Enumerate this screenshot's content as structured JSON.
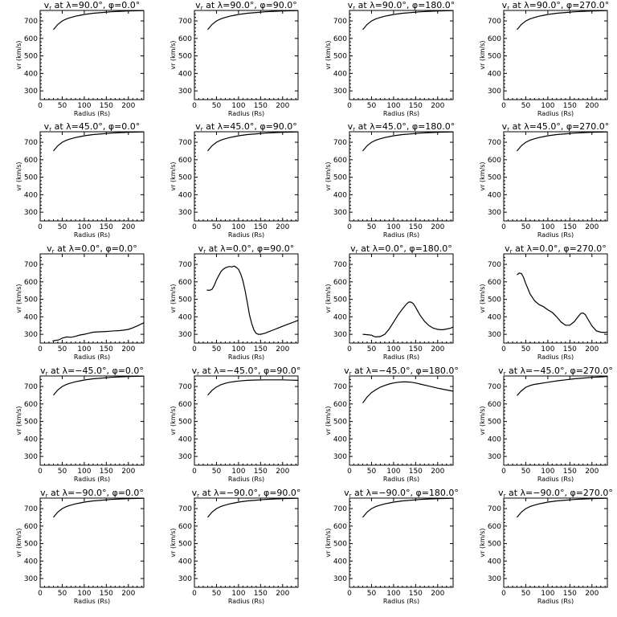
{
  "chart_data": [
    {
      "type": "line",
      "title": "v_r at λ=90.0°, φ=0.0°",
      "title_parts": {
        "lat": "90.0",
        "lon": "0.0"
      },
      "xlabel": "Radius (Rs)",
      "ylabel": "v_r (km/s)",
      "xlim": [
        0,
        235
      ],
      "ylim": [
        250,
        760
      ],
      "xticks": [
        0,
        50,
        100,
        150,
        200
      ],
      "yticks": [
        300,
        400,
        500,
        600,
        700
      ],
      "x": [
        30,
        40,
        50,
        60,
        70,
        80,
        90,
        100,
        120,
        140,
        160,
        180,
        200,
        220,
        235
      ],
      "y": [
        650,
        680,
        700,
        712,
        720,
        727,
        732,
        737,
        744,
        748,
        752,
        755,
        757,
        758,
        759
      ]
    },
    {
      "type": "line",
      "title": "v_r at λ=90.0°, φ=90.0°",
      "title_parts": {
        "lat": "90.0",
        "lon": "90.0"
      },
      "xlabel": "Radius (Rs)",
      "ylabel": "v_r (km/s)",
      "xlim": [
        0,
        235
      ],
      "ylim": [
        250,
        760
      ],
      "xticks": [
        0,
        50,
        100,
        150,
        200
      ],
      "yticks": [
        300,
        400,
        500,
        600,
        700
      ],
      "x": [
        30,
        40,
        50,
        60,
        70,
        80,
        90,
        100,
        120,
        140,
        160,
        180,
        200,
        220,
        235
      ],
      "y": [
        650,
        680,
        700,
        712,
        720,
        727,
        732,
        737,
        744,
        748,
        752,
        755,
        757,
        758,
        759
      ]
    },
    {
      "type": "line",
      "title": "v_r at λ=90.0°, φ=180.0°",
      "title_parts": {
        "lat": "90.0",
        "lon": "180.0"
      },
      "xlabel": "Radius (Rs)",
      "ylabel": "v_r (km/s)",
      "xlim": [
        0,
        235
      ],
      "ylim": [
        250,
        760
      ],
      "xticks": [
        0,
        50,
        100,
        150,
        200
      ],
      "yticks": [
        300,
        400,
        500,
        600,
        700
      ],
      "x": [
        30,
        40,
        50,
        60,
        70,
        80,
        90,
        100,
        120,
        140,
        160,
        180,
        200,
        220,
        235
      ],
      "y": [
        650,
        680,
        700,
        712,
        720,
        727,
        732,
        737,
        744,
        748,
        752,
        755,
        757,
        758,
        759
      ]
    },
    {
      "type": "line",
      "title": "v_r at λ=90.0°, φ=270.0°",
      "title_parts": {
        "lat": "90.0",
        "lon": "270.0"
      },
      "xlabel": "Radius (Rs)",
      "ylabel": "v_r (km/s)",
      "xlim": [
        0,
        235
      ],
      "ylim": [
        250,
        760
      ],
      "xticks": [
        0,
        50,
        100,
        150,
        200
      ],
      "yticks": [
        300,
        400,
        500,
        600,
        700
      ],
      "x": [
        30,
        40,
        50,
        60,
        70,
        80,
        90,
        100,
        120,
        140,
        160,
        180,
        200,
        220,
        235
      ],
      "y": [
        650,
        680,
        700,
        712,
        720,
        727,
        732,
        737,
        744,
        748,
        752,
        755,
        757,
        758,
        759
      ]
    },
    {
      "type": "line",
      "title": "v_r at λ=45.0°, φ=0.0°",
      "title_parts": {
        "lat": "45.0",
        "lon": "0.0"
      },
      "xlabel": "Radius (Rs)",
      "ylabel": "v_r (km/s)",
      "xlim": [
        0,
        235
      ],
      "ylim": [
        250,
        760
      ],
      "xticks": [
        0,
        50,
        100,
        150,
        200
      ],
      "yticks": [
        300,
        400,
        500,
        600,
        700
      ],
      "x": [
        30,
        40,
        50,
        60,
        70,
        80,
        90,
        100,
        120,
        140,
        160,
        180,
        200,
        220,
        235
      ],
      "y": [
        650,
        680,
        700,
        712,
        720,
        727,
        732,
        737,
        744,
        748,
        752,
        755,
        757,
        758,
        759
      ]
    },
    {
      "type": "line",
      "title": "v_r at λ=45.0°, φ=90.0°",
      "title_parts": {
        "lat": "45.0",
        "lon": "90.0"
      },
      "xlabel": "Radius (Rs)",
      "ylabel": "v_r (km/s)",
      "xlim": [
        0,
        235
      ],
      "ylim": [
        250,
        760
      ],
      "xticks": [
        0,
        50,
        100,
        150,
        200
      ],
      "yticks": [
        300,
        400,
        500,
        600,
        700
      ],
      "x": [
        30,
        40,
        50,
        60,
        70,
        80,
        90,
        100,
        120,
        140,
        160,
        180,
        200,
        220,
        235
      ],
      "y": [
        650,
        680,
        700,
        712,
        720,
        727,
        732,
        737,
        744,
        748,
        752,
        755,
        757,
        758,
        759
      ]
    },
    {
      "type": "line",
      "title": "v_r at λ=45.0°, φ=180.0°",
      "title_parts": {
        "lat": "45.0",
        "lon": "180.0"
      },
      "xlabel": "Radius (Rs)",
      "ylabel": "v_r (km/s)",
      "xlim": [
        0,
        235
      ],
      "ylim": [
        250,
        760
      ],
      "xticks": [
        0,
        50,
        100,
        150,
        200
      ],
      "yticks": [
        300,
        400,
        500,
        600,
        700
      ],
      "x": [
        30,
        40,
        50,
        60,
        70,
        80,
        90,
        100,
        120,
        140,
        160,
        180,
        200,
        220,
        235
      ],
      "y": [
        650,
        680,
        700,
        712,
        720,
        727,
        732,
        737,
        744,
        748,
        752,
        755,
        757,
        758,
        759
      ]
    },
    {
      "type": "line",
      "title": "v_r at λ=45.0°, φ=270.0°",
      "title_parts": {
        "lat": "45.0",
        "lon": "270.0"
      },
      "xlabel": "Radius (Rs)",
      "ylabel": "v_r (km/s)",
      "xlim": [
        0,
        235
      ],
      "ylim": [
        250,
        760
      ],
      "xticks": [
        0,
        50,
        100,
        150,
        200
      ],
      "yticks": [
        300,
        400,
        500,
        600,
        700
      ],
      "x": [
        30,
        40,
        50,
        60,
        70,
        80,
        90,
        100,
        120,
        140,
        160,
        180,
        200,
        220,
        235
      ],
      "y": [
        650,
        680,
        700,
        712,
        720,
        727,
        732,
        737,
        744,
        748,
        752,
        755,
        757,
        758,
        759
      ]
    },
    {
      "type": "line",
      "title": "v_r at λ=0.0°, φ=0.0°",
      "title_parts": {
        "lat": "0.0",
        "lon": "0.0"
      },
      "xlabel": "Radius (Rs)",
      "ylabel": "v_r (km/s)",
      "xlim": [
        0,
        235
      ],
      "ylim": [
        250,
        760
      ],
      "xticks": [
        0,
        50,
        100,
        150,
        200
      ],
      "yticks": [
        300,
        400,
        500,
        600,
        700
      ],
      "x": [
        28,
        35,
        42,
        50,
        60,
        70,
        80,
        90,
        100,
        110,
        120,
        130,
        140,
        150,
        160,
        170,
        180,
        190,
        200,
        210,
        220,
        230,
        235
      ],
      "y": [
        262,
        265,
        268,
        278,
        285,
        283,
        288,
        296,
        300,
        306,
        312,
        314,
        315,
        316,
        318,
        320,
        321,
        324,
        328,
        337,
        348,
        360,
        366
      ]
    },
    {
      "type": "line",
      "title": "v_r at λ=0.0°, φ=90.0°",
      "title_parts": {
        "lat": "0.0",
        "lon": "90.0"
      },
      "xlabel": "Radius (Rs)",
      "ylabel": "v_r (km/s)",
      "xlim": [
        0,
        235
      ],
      "ylim": [
        250,
        760
      ],
      "xticks": [
        0,
        50,
        100,
        150,
        200
      ],
      "yticks": [
        300,
        400,
        500,
        600,
        700
      ],
      "x": [
        28,
        35,
        40,
        45,
        50,
        55,
        60,
        65,
        70,
        75,
        80,
        85,
        90,
        95,
        100,
        105,
        110,
        115,
        120,
        125,
        130,
        135,
        140,
        145,
        150,
        160,
        170,
        180,
        190,
        200,
        210,
        220,
        230,
        235
      ],
      "y": [
        553,
        552,
        558,
        580,
        610,
        635,
        658,
        672,
        680,
        685,
        688,
        685,
        690,
        683,
        672,
        645,
        605,
        550,
        480,
        410,
        360,
        325,
        305,
        300,
        300,
        306,
        316,
        326,
        336,
        346,
        356,
        365,
        375,
        380
      ]
    },
    {
      "type": "line",
      "title": "v_r at λ=0.0°, φ=180.0°",
      "title_parts": {
        "lat": "0.0",
        "lon": "180.0"
      },
      "xlabel": "Radius (Rs)",
      "ylabel": "v_r (km/s)",
      "xlim": [
        0,
        235
      ],
      "ylim": [
        250,
        760
      ],
      "xticks": [
        0,
        50,
        100,
        150,
        200
      ],
      "yticks": [
        300,
        400,
        500,
        600,
        700
      ],
      "x": [
        30,
        40,
        50,
        55,
        60,
        70,
        80,
        90,
        100,
        110,
        120,
        130,
        135,
        140,
        145,
        150,
        160,
        170,
        180,
        190,
        200,
        210,
        220,
        230,
        235
      ],
      "y": [
        300,
        298,
        295,
        288,
        285,
        287,
        300,
        330,
        370,
        410,
        445,
        475,
        485,
        484,
        474,
        455,
        410,
        375,
        350,
        335,
        328,
        326,
        330,
        336,
        342
      ]
    },
    {
      "type": "line",
      "title": "v_r at λ=0.0°, φ=270.0°",
      "title_parts": {
        "lat": "0.0",
        "lon": "270.0"
      },
      "xlabel": "Radius (Rs)",
      "ylabel": "v_r (km/s)",
      "xlim": [
        0,
        235
      ],
      "ylim": [
        250,
        760
      ],
      "xticks": [
        0,
        50,
        100,
        150,
        200
      ],
      "yticks": [
        300,
        400,
        500,
        600,
        700
      ],
      "x": [
        30,
        35,
        40,
        45,
        50,
        55,
        60,
        70,
        80,
        90,
        100,
        110,
        120,
        130,
        140,
        150,
        160,
        170,
        175,
        180,
        185,
        190,
        200,
        210,
        220,
        230,
        235
      ],
      "y": [
        640,
        650,
        648,
        625,
        590,
        560,
        530,
        492,
        470,
        458,
        440,
        425,
        400,
        370,
        352,
        352,
        372,
        405,
        420,
        422,
        412,
        390,
        348,
        320,
        312,
        310,
        314
      ]
    },
    {
      "type": "line",
      "title": "v_r at λ=-45.0°, φ=0.0°",
      "title_parts": {
        "lat": "−45.0",
        "lon": "0.0"
      },
      "xlabel": "Radius (Rs)",
      "ylabel": "v_r (km/s)",
      "xlim": [
        0,
        235
      ],
      "ylim": [
        250,
        760
      ],
      "xticks": [
        0,
        50,
        100,
        150,
        200
      ],
      "yticks": [
        300,
        400,
        500,
        600,
        700
      ],
      "x": [
        30,
        40,
        50,
        60,
        70,
        80,
        90,
        100,
        120,
        140,
        160,
        180,
        200,
        220,
        235
      ],
      "y": [
        650,
        680,
        700,
        712,
        720,
        727,
        732,
        737,
        744,
        748,
        752,
        755,
        757,
        758,
        759
      ]
    },
    {
      "type": "line",
      "title": "v_r at λ=-45.0°, φ=90.0°",
      "title_parts": {
        "lat": "−45.0",
        "lon": "90.0"
      },
      "xlabel": "Radius (Rs)",
      "ylabel": "v_r (km/s)",
      "xlim": [
        0,
        235
      ],
      "ylim": [
        250,
        760
      ],
      "xticks": [
        0,
        50,
        100,
        150,
        200
      ],
      "yticks": [
        300,
        400,
        500,
        600,
        700
      ],
      "x": [
        30,
        40,
        50,
        60,
        70,
        80,
        90,
        100,
        120,
        140,
        160,
        180,
        200,
        220,
        235
      ],
      "y": [
        650,
        678,
        697,
        710,
        718,
        724,
        728,
        731,
        735,
        737,
        738,
        738,
        738,
        736,
        735
      ]
    },
    {
      "type": "line",
      "title": "v_r at λ=-45.0°, φ=180.0°",
      "title_parts": {
        "lat": "−45.0",
        "lon": "180.0"
      },
      "xlabel": "Radius (Rs)",
      "ylabel": "v_r (km/s)",
      "xlim": [
        0,
        235
      ],
      "ylim": [
        250,
        760
      ],
      "xticks": [
        0,
        50,
        100,
        150,
        200
      ],
      "yticks": [
        300,
        400,
        500,
        600,
        700
      ],
      "x": [
        30,
        40,
        50,
        60,
        70,
        80,
        90,
        100,
        110,
        120,
        130,
        140,
        150,
        160,
        180,
        200,
        220,
        235
      ],
      "y": [
        605,
        640,
        665,
        682,
        696,
        706,
        714,
        720,
        724,
        726,
        726,
        724,
        720,
        714,
        702,
        690,
        680,
        673
      ]
    },
    {
      "type": "line",
      "title": "v_r at λ=-45.0°, φ=270.0°",
      "title_parts": {
        "lat": "−45.0",
        "lon": "270.0"
      },
      "xlabel": "Radius (Rs)",
      "ylabel": "v_r (km/s)",
      "xlim": [
        0,
        235
      ],
      "ylim": [
        250,
        760
      ],
      "xticks": [
        0,
        50,
        100,
        150,
        200
      ],
      "yticks": [
        300,
        400,
        500,
        600,
        700
      ],
      "x": [
        30,
        40,
        50,
        60,
        70,
        80,
        90,
        100,
        120,
        140,
        160,
        180,
        200,
        220,
        235
      ],
      "y": [
        648,
        675,
        695,
        706,
        712,
        716,
        720,
        724,
        732,
        738,
        744,
        748,
        752,
        755,
        757
      ]
    },
    {
      "type": "line",
      "title": "v_r at λ=-90.0°, φ=0.0°",
      "title_parts": {
        "lat": "−90.0",
        "lon": "0.0"
      },
      "xlabel": "Radius (Rs)",
      "ylabel": "v_r (km/s)",
      "xlim": [
        0,
        235
      ],
      "ylim": [
        250,
        760
      ],
      "xticks": [
        0,
        50,
        100,
        150,
        200
      ],
      "yticks": [
        300,
        400,
        500,
        600,
        700
      ],
      "x": [
        30,
        40,
        50,
        60,
        70,
        80,
        90,
        100,
        120,
        140,
        160,
        180,
        200,
        220,
        235
      ],
      "y": [
        650,
        680,
        700,
        712,
        720,
        727,
        732,
        737,
        744,
        748,
        752,
        755,
        757,
        758,
        759
      ]
    },
    {
      "type": "line",
      "title": "v_r at λ=-90.0°, φ=90.0°",
      "title_parts": {
        "lat": "−90.0",
        "lon": "90.0"
      },
      "xlabel": "Radius (Rs)",
      "ylabel": "v_r (km/s)",
      "xlim": [
        0,
        235
      ],
      "ylim": [
        250,
        760
      ],
      "xticks": [
        0,
        50,
        100,
        150,
        200
      ],
      "yticks": [
        300,
        400,
        500,
        600,
        700
      ],
      "x": [
        30,
        40,
        50,
        60,
        70,
        80,
        90,
        100,
        120,
        140,
        160,
        180,
        200,
        220,
        235
      ],
      "y": [
        650,
        680,
        700,
        712,
        720,
        727,
        732,
        737,
        744,
        748,
        752,
        755,
        757,
        758,
        759
      ]
    },
    {
      "type": "line",
      "title": "v_r at λ=-90.0°, φ=180.0°",
      "title_parts": {
        "lat": "−90.0",
        "lon": "180.0"
      },
      "xlabel": "Radius (Rs)",
      "ylabel": "v_r (km/s)",
      "xlim": [
        0,
        235
      ],
      "ylim": [
        250,
        760
      ],
      "xticks": [
        0,
        50,
        100,
        150,
        200
      ],
      "yticks": [
        300,
        400,
        500,
        600,
        700
      ],
      "x": [
        30,
        40,
        50,
        60,
        70,
        80,
        90,
        100,
        120,
        140,
        160,
        180,
        200,
        220,
        235
      ],
      "y": [
        650,
        680,
        700,
        712,
        720,
        727,
        732,
        737,
        744,
        748,
        752,
        755,
        757,
        758,
        759
      ]
    },
    {
      "type": "line",
      "title": "v_r at λ=-90.0°, φ=270.0°",
      "title_parts": {
        "lat": "−90.0",
        "lon": "270.0"
      },
      "xlabel": "Radius (Rs)",
      "ylabel": "v_r (km/s)",
      "xlim": [
        0,
        235
      ],
      "ylim": [
        250,
        760
      ],
      "xticks": [
        0,
        50,
        100,
        150,
        200
      ],
      "yticks": [
        300,
        400,
        500,
        600,
        700
      ],
      "x": [
        30,
        40,
        50,
        60,
        70,
        80,
        90,
        100,
        120,
        140,
        160,
        180,
        200,
        220,
        235
      ],
      "y": [
        650,
        680,
        700,
        712,
        720,
        727,
        732,
        737,
        744,
        748,
        752,
        755,
        757,
        758,
        759
      ]
    }
  ]
}
